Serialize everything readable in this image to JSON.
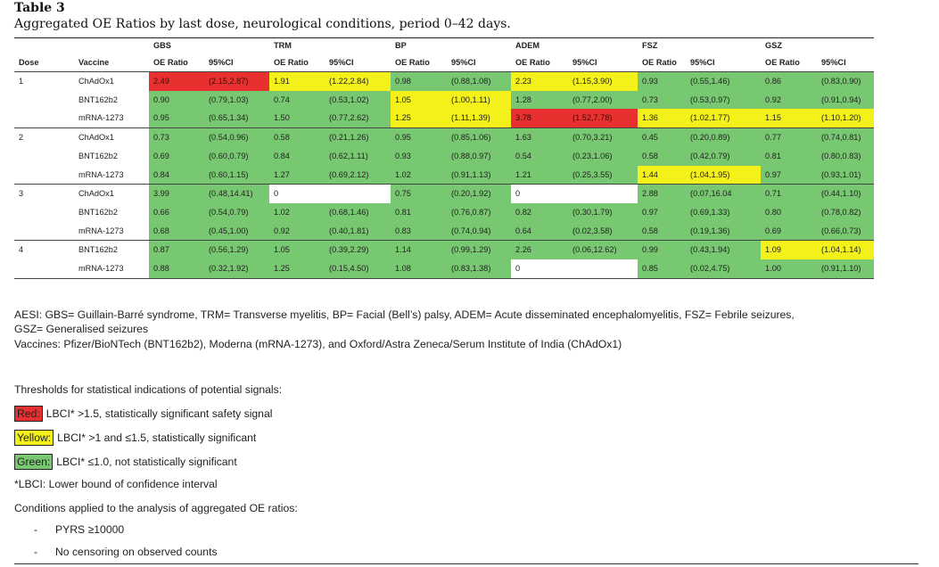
{
  "table_label": "Table 3",
  "caption": "Aggregated OE Ratios by last dose, neurological conditions, period 0–42 days.",
  "colors": {
    "red": "#e83030",
    "yellow": "#f4f01a",
    "green": "#78c771"
  },
  "columns": {
    "dose": "Dose",
    "vaccine": "Vaccine",
    "conditions": [
      "GBS",
      "TRM",
      "BP",
      "ADEM",
      "FSZ",
      "GSZ"
    ],
    "oe": "OE Ratio",
    "ci": "95%CI"
  },
  "groups": [
    {
      "dose": "1",
      "rows": [
        {
          "vaccine": "ChAdOx1",
          "cells": [
            {
              "oe": "2.49",
              "ci": "(2.15,2.87)",
              "color": "red"
            },
            {
              "oe": "1.91",
              "ci": "(1.22,2.84)",
              "color": "yellow"
            },
            {
              "oe": "0.98",
              "ci": "(0.88,1.08)",
              "color": "green"
            },
            {
              "oe": "2.23",
              "ci": "(1.15,3.90)",
              "color": "yellow"
            },
            {
              "oe": "0.93",
              "ci": "(0.55,1.46)",
              "color": "green"
            },
            {
              "oe": "0.86",
              "ci": "(0.83,0.90)",
              "color": "green"
            }
          ]
        },
        {
          "vaccine": "BNT162b2",
          "cells": [
            {
              "oe": "0.90",
              "ci": "(0.79,1.03)",
              "color": "green"
            },
            {
              "oe": "0.74",
              "ci": "(0.53,1.02)",
              "color": "green"
            },
            {
              "oe": "1.05",
              "ci": "(1.00,1.11)",
              "color": "yellow"
            },
            {
              "oe": "1.28",
              "ci": "(0.77,2.00)",
              "color": "green"
            },
            {
              "oe": "0.73",
              "ci": "(0.53,0.97)",
              "color": "green"
            },
            {
              "oe": "0.92",
              "ci": "(0.91,0.94)",
              "color": "green"
            }
          ]
        },
        {
          "vaccine": "mRNA-1273",
          "cells": [
            {
              "oe": "0.95",
              "ci": "(0.65,1.34)",
              "color": "green"
            },
            {
              "oe": "1.50",
              "ci": "(0.77,2.62)",
              "color": "green"
            },
            {
              "oe": "1.25",
              "ci": "(1.11,1.39)",
              "color": "yellow"
            },
            {
              "oe": "3.78",
              "ci": "(1.52,7.78)",
              "color": "red"
            },
            {
              "oe": "1.36",
              "ci": "(1.02,1.77)",
              "color": "yellow"
            },
            {
              "oe": "1.15",
              "ci": "(1.10,1.20)",
              "color": "yellow"
            }
          ]
        }
      ]
    },
    {
      "dose": "2",
      "rows": [
        {
          "vaccine": "ChAdOx1",
          "cells": [
            {
              "oe": "0.73",
              "ci": "(0.54,0.96)",
              "color": "green"
            },
            {
              "oe": "0.58",
              "ci": "(0.21,1.26)",
              "color": "green"
            },
            {
              "oe": "0.95",
              "ci": "(0.85,1.06)",
              "color": "green"
            },
            {
              "oe": "1.63",
              "ci": "(0.70,3.21)",
              "color": "green"
            },
            {
              "oe": "0.45",
              "ci": "(0.20,0.89)",
              "color": "green"
            },
            {
              "oe": "0.77",
              "ci": "(0.74,0.81)",
              "color": "green"
            }
          ]
        },
        {
          "vaccine": "BNT162b2",
          "cells": [
            {
              "oe": "0.69",
              "ci": "(0.60,0.79)",
              "color": "green"
            },
            {
              "oe": "0.84",
              "ci": "(0.62,1.11)",
              "color": "green"
            },
            {
              "oe": "0.93",
              "ci": "(0.88,0.97)",
              "color": "green"
            },
            {
              "oe": "0.54",
              "ci": "(0.23,1.06)",
              "color": "green"
            },
            {
              "oe": "0.58",
              "ci": "(0.42,0.79)",
              "color": "green"
            },
            {
              "oe": "0.81",
              "ci": "(0.80,0.83)",
              "color": "green"
            }
          ]
        },
        {
          "vaccine": "mRNA-1273",
          "cells": [
            {
              "oe": "0.84",
              "ci": "(0.60,1.15)",
              "color": "green"
            },
            {
              "oe": "1.27",
              "ci": "(0.69,2.12)",
              "color": "green"
            },
            {
              "oe": "1.02",
              "ci": "(0.91,1.13)",
              "color": "green"
            },
            {
              "oe": "1.21",
              "ci": "(0.25,3.55)",
              "color": "green"
            },
            {
              "oe": "1.44",
              "ci": "(1.04,1.95)",
              "color": "yellow"
            },
            {
              "oe": "0.97",
              "ci": "(0.93,1.01)",
              "color": "green"
            }
          ]
        }
      ]
    },
    {
      "dose": "3",
      "rows": [
        {
          "vaccine": "ChAdOx1",
          "cells": [
            {
              "oe": "3.99",
              "ci": "(0.48,14.41)",
              "color": "green"
            },
            {
              "oe": "0",
              "ci": "",
              "color": "white"
            },
            {
              "oe": "0.75",
              "ci": "(0.20,1.92)",
              "color": "green"
            },
            {
              "oe": "0",
              "ci": "",
              "color": "white"
            },
            {
              "oe": "2.88",
              "ci": "(0.07,16.04",
              "color": "green"
            },
            {
              "oe": "0.71",
              "ci": "(0.44,1.10)",
              "color": "green"
            }
          ]
        },
        {
          "vaccine": "BNT162b2",
          "cells": [
            {
              "oe": "0.66",
              "ci": "(0.54,0.79)",
              "color": "green"
            },
            {
              "oe": "1.02",
              "ci": "(0.68,1.46)",
              "color": "green"
            },
            {
              "oe": "0.81",
              "ci": "(0.76,0.87)",
              "color": "green"
            },
            {
              "oe": "0.82",
              "ci": "(0.30,1.79)",
              "color": "green"
            },
            {
              "oe": "0.97",
              "ci": "(0.69,1.33)",
              "color": "green"
            },
            {
              "oe": "0.80",
              "ci": "(0.78,0.82)",
              "color": "green"
            }
          ]
        },
        {
          "vaccine": "mRNA-1273",
          "cells": [
            {
              "oe": "0.68",
              "ci": "(0.45,1.00)",
              "color": "green"
            },
            {
              "oe": "0.92",
              "ci": "(0.40,1.81)",
              "color": "green"
            },
            {
              "oe": "0.83",
              "ci": "(0.74,0.94)",
              "color": "green"
            },
            {
              "oe": "0.64",
              "ci": "(0.02,3.58)",
              "color": "green"
            },
            {
              "oe": "0.58",
              "ci": "(0.19,1.36)",
              "color": "green"
            },
            {
              "oe": "0.69",
              "ci": "(0.66,0.73)",
              "color": "green"
            }
          ]
        }
      ]
    },
    {
      "dose": "4",
      "rows": [
        {
          "vaccine": "BNT162b2",
          "cells": [
            {
              "oe": "0.87",
              "ci": "(0.56,1.29)",
              "color": "green"
            },
            {
              "oe": "1.05",
              "ci": "(0.39,2.29)",
              "color": "green"
            },
            {
              "oe": "1.14",
              "ci": "(0.99,1.29)",
              "color": "green"
            },
            {
              "oe": "2.26",
              "ci": "(0.06,12.62)",
              "color": "green"
            },
            {
              "oe": "0.99",
              "ci": "(0.43,1.94)",
              "color": "green"
            },
            {
              "oe": "1.09",
              "ci": "(1.04,1.14)",
              "color": "yellow"
            }
          ]
        },
        {
          "vaccine": "mRNA-1273",
          "cells": [
            {
              "oe": "0.88",
              "ci": "(0.32,1.92)",
              "color": "green"
            },
            {
              "oe": "1.25",
              "ci": "(0.15,4.50)",
              "color": "green"
            },
            {
              "oe": "1.08",
              "ci": "(0.83,1.38)",
              "color": "green"
            },
            {
              "oe": "0",
              "ci": "",
              "color": "white"
            },
            {
              "oe": "0.85",
              "ci": "(0.02,4.75)",
              "color": "green"
            },
            {
              "oe": "1.00",
              "ci": "(0.91,1.10)",
              "color": "green"
            }
          ]
        }
      ]
    }
  ],
  "notes": {
    "aesi_line1": "AESI: GBS= Guillain-Barré syndrome, TRM= Transverse myelitis, BP= Facial (Bell’s) palsy, ADEM= Acute disseminated encephalomyelitis, FSZ= Febrile seizures,",
    "aesi_line2": "GSZ= Generalised seizures",
    "vaccines": "Vaccines: Pfizer/BioNTech (BNT162b2), Moderna (mRNA-1273), and Oxford/Astra Zeneca/Serum Institute of India (ChAdOx1)",
    "thresholds_heading": "Thresholds for statistical indications of potential signals:",
    "legend": [
      {
        "label": "Red:",
        "text": "LBCI* >1.5, statistically significant safety signal",
        "color": "red"
      },
      {
        "label": "Yellow:",
        "text": "LBCI* >1 and ≤1.5, statistically significant",
        "color": "yellow"
      },
      {
        "label": "Green:",
        "text": "LBCI* ≤1.0, not statistically significant",
        "color": "green"
      }
    ],
    "lbci": "*LBCI: Lower bound of confidence interval",
    "conditions_heading": "Conditions applied to the analysis of aggregated OE ratios:",
    "conditions": [
      {
        "dash": "-",
        "text": "PYRS ≥10000"
      },
      {
        "dash": "-",
        "text": "No censoring on observed counts"
      }
    ]
  }
}
